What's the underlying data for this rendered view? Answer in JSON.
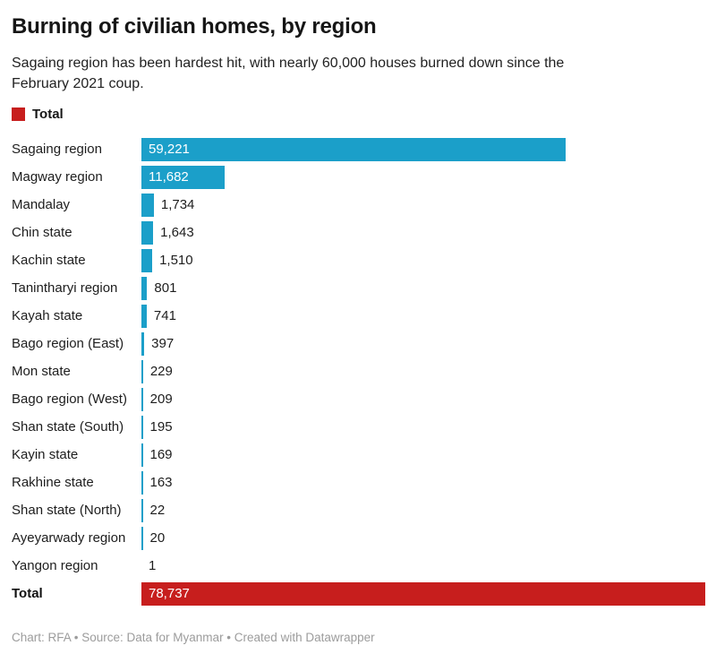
{
  "header": {
    "title": "Burning of civilian homes, by region",
    "subtitle": "Sagaing region has been hardest hit, with nearly 60,000 houses burned down since the February 2021 coup."
  },
  "legend": {
    "label": "Total",
    "color": "#c71e1d"
  },
  "chart_data": {
    "type": "bar",
    "orientation": "horizontal",
    "title": "Burning of civilian homes, by region",
    "subtitle": "Sagaing region has been hardest hit, with nearly 60,000 houses burned down since the February 2021 coup.",
    "categories": [
      "Sagaing region",
      "Magway region",
      "Mandalay",
      "Chin state",
      "Kachin state",
      "Tanintharyi region",
      "Kayah state",
      "Bago region (East)",
      "Mon state",
      "Bago region (West)",
      "Shan state (South)",
      "Kayin state",
      "Rakhine state",
      "Shan state (North)",
      "Ayeyarwady region",
      "Yangon region",
      "Total"
    ],
    "values": [
      59221,
      11682,
      1734,
      1643,
      1510,
      801,
      741,
      397,
      229,
      209,
      195,
      169,
      163,
      22,
      20,
      1,
      78737
    ],
    "value_labels": [
      "59,221",
      "11,682",
      "1,734",
      "1,643",
      "1,510",
      "801",
      "741",
      "397",
      "229",
      "209",
      "195",
      "169",
      "163",
      "22",
      "20",
      "1",
      "78,737"
    ],
    "total_category": "Total",
    "bar_color": "#1b9fc9",
    "total_bar_color": "#c71e1d",
    "xlim": [
      0,
      78737
    ],
    "grid": false,
    "legend_position": "top-left",
    "value_label_position": "inside-or-right"
  },
  "footer": {
    "credit": "Chart: RFA • Source: Data for Myanmar • Created with Datawrapper"
  }
}
